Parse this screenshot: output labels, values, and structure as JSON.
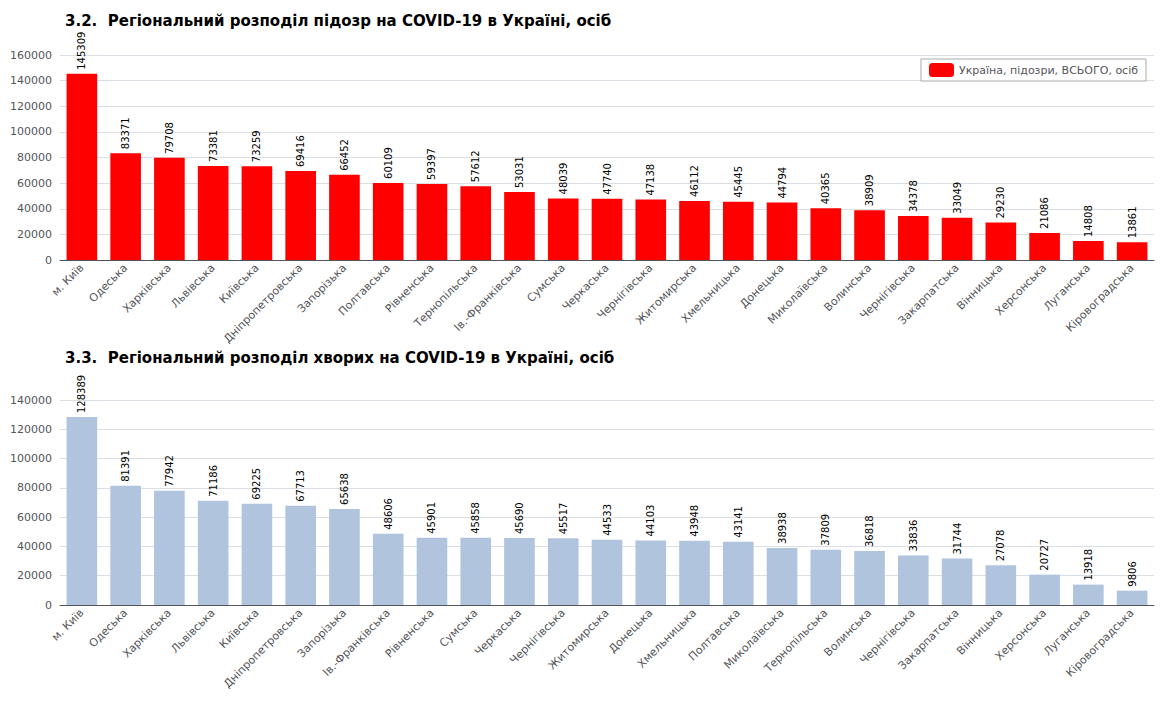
{
  "chart_data": [
    {
      "type": "bar",
      "title": "3.2.  Регіональний розподіл підозр на COVID-19 в Україні, осіб",
      "categories": [
        "м. Київ",
        "Одеська",
        "Харківська",
        "Львівська",
        "Київська",
        "Дніпропетровська",
        "Запорізька",
        "Полтавська",
        "Рівненська",
        "Тернопільська",
        "Ів.-Франківська",
        "Сумська",
        "Черкаська",
        "Чернігівська",
        "Житомирська",
        "Хмельницька",
        "Донецька",
        "Миколаївська",
        "Волинська",
        "Чернігівська",
        "Закарпатська",
        "Вінницька",
        "Херсонська",
        "Луганська",
        "Кіровоградська"
      ],
      "series": [
        {
          "name": "Україна, підозри, ВСЬОГО, осіб",
          "color": "#FF0000",
          "values": [
            145309,
            83371,
            79708,
            73381,
            73259,
            69416,
            66452,
            60109,
            59397,
            57612,
            53031,
            48039,
            47740,
            47138,
            46112,
            45445,
            44794,
            40365,
            38909,
            34378,
            33049,
            29230,
            21086,
            14808,
            13861
          ]
        }
      ],
      "ylim": [
        0,
        160000
      ],
      "yticks": [
        0,
        20000,
        40000,
        60000,
        80000,
        100000,
        120000,
        140000,
        160000
      ],
      "grid": true,
      "legend": "upper right",
      "data_labels": true
    },
    {
      "type": "bar",
      "title": "3.3.  Регіональний розподіл хворих на COVID-19 в Україні, осіб",
      "categories": [
        "м. Київ",
        "Одеська",
        "Харківська",
        "Львівська",
        "Київська",
        "Дніпропетровська",
        "Запорізька",
        "Ів.-Франківська",
        "Рівненська",
        "Сумська",
        "Черкаська",
        "Чернігівська",
        "Житомирська",
        "Донецька",
        "Хмельницька",
        "Полтавська",
        "Миколаївська",
        "Тернопільська",
        "Волинська",
        "Чернігівська",
        "Закарпатська",
        "Вінницька",
        "Херсонська",
        "Луганська",
        "Кіровоградська"
      ],
      "values": [
        128389,
        81391,
        77942,
        71186,
        69225,
        67713,
        65638,
        48606,
        45901,
        45858,
        45690,
        45517,
        44533,
        44103,
        43948,
        43141,
        38938,
        37809,
        36818,
        33836,
        31744,
        27078,
        20727,
        13918,
        9806
      ],
      "color": "#b0c4de",
      "ylim": [
        0,
        140000
      ],
      "yticks": [
        0,
        20000,
        40000,
        60000,
        80000,
        100000,
        120000,
        140000
      ],
      "grid": true,
      "data_labels": true
    }
  ]
}
